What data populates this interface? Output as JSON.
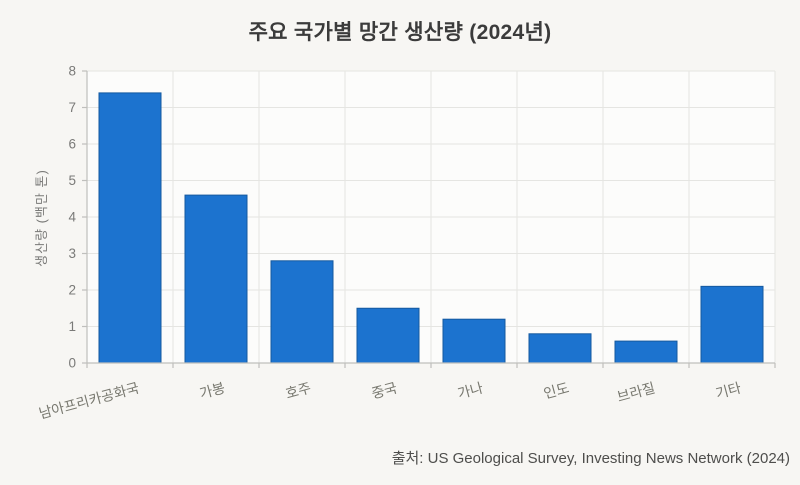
{
  "title": "주요 국가별 망간 생산량 (2024년)",
  "source_note": "출처: US Geological Survey, Investing News Network (2024)",
  "colors": {
    "bar": "#1c73cf",
    "bar_edge": "#15599f",
    "page_bg": "#f7f6f3",
    "plot_bg": "#fcfcfb",
    "grid": "#e5e5e2",
    "axis": "#bfbfbc",
    "tick_label": "#7a7a78",
    "title_text": "#3b3b3b",
    "source_text": "#4e4e4c"
  },
  "chart_data": {
    "type": "bar",
    "title": "주요 국가별 망간 생산량 (2024년)",
    "categories": [
      "남아프리카공화국",
      "가봉",
      "호주",
      "중국",
      "가나",
      "인도",
      "브라질",
      "기타"
    ],
    "values": [
      7.4,
      4.6,
      2.8,
      1.5,
      1.2,
      0.8,
      0.6,
      2.1
    ],
    "xlabel": "",
    "ylabel": "생산량 (백만 톤)",
    "ylim": [
      0,
      8
    ],
    "yticks": [
      0,
      1,
      2,
      3,
      4,
      5,
      6,
      7,
      8
    ],
    "grid": true,
    "legend": false,
    "source": "출처: US Geological Survey, Investing News Network (2024)"
  }
}
